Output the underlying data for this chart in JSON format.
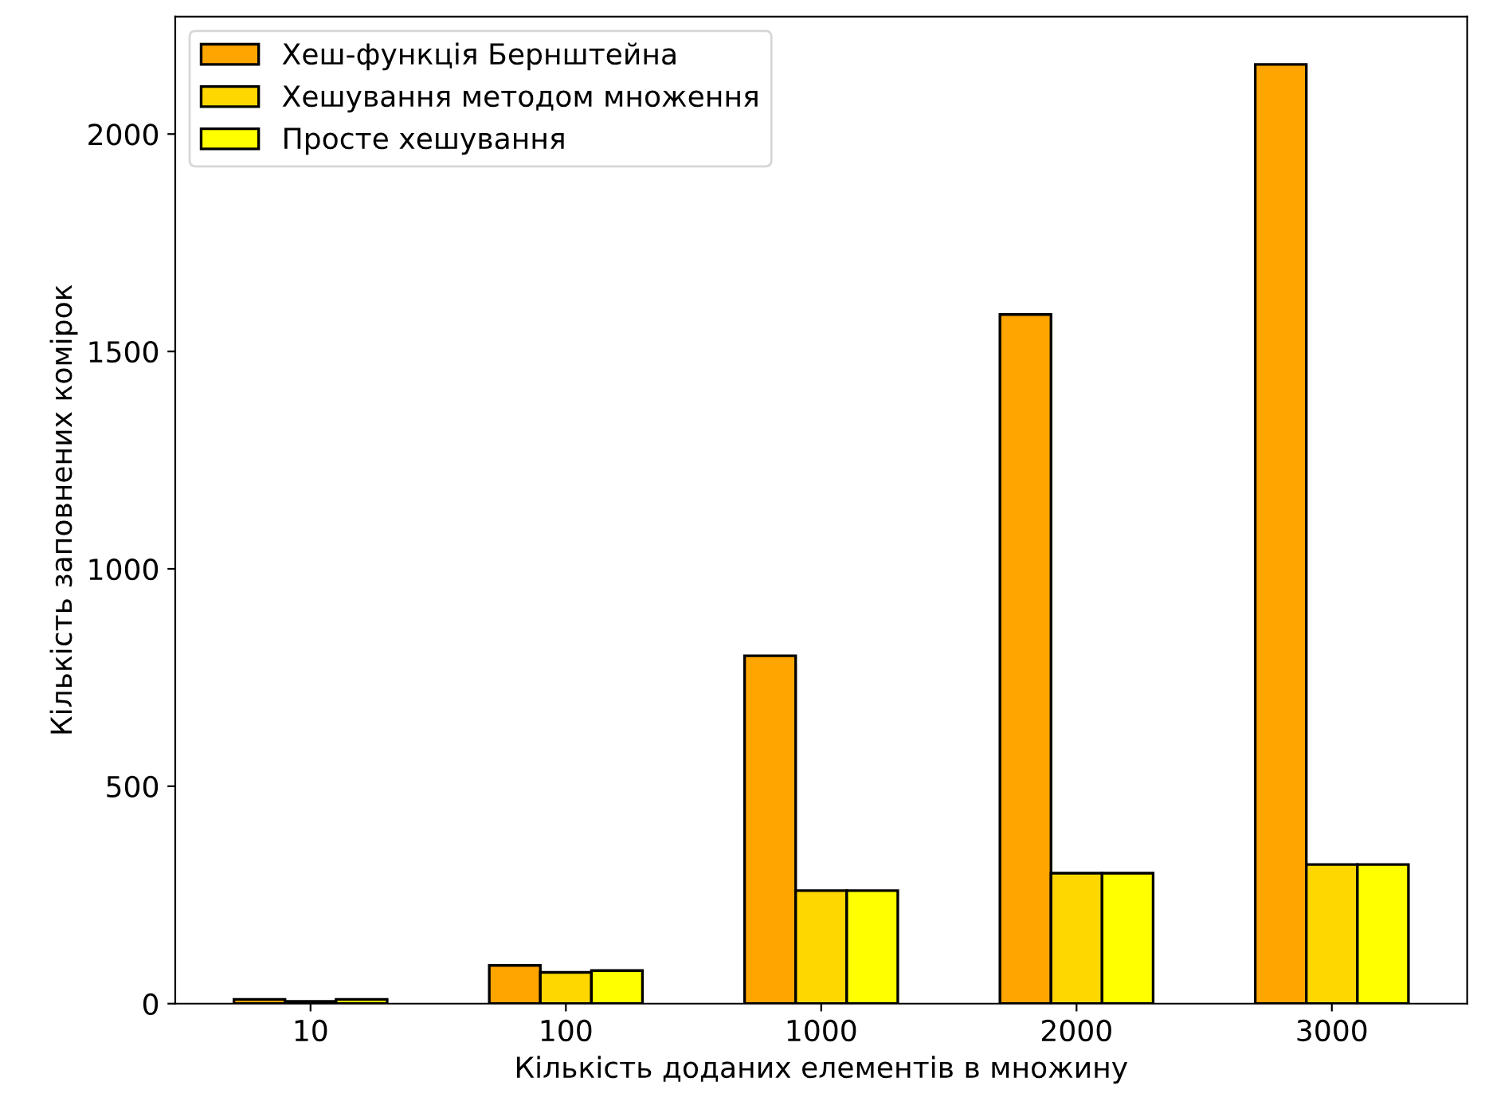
{
  "chart_data": {
    "type": "bar",
    "xlabel": "Кількість доданих елементів в множину",
    "ylabel": "Кількість заповнених комірок",
    "categories": [
      "10",
      "100",
      "1000",
      "2000",
      "3000"
    ],
    "series": [
      {
        "name": "Хеш-функція Бернштейна",
        "color": "#ffa500",
        "values": [
          10,
          88,
          800,
          1585,
          2160
        ]
      },
      {
        "name": "Хешування методом множення",
        "color": "#ffd700",
        "values": [
          5,
          72,
          260,
          300,
          320
        ]
      },
      {
        "name": "Просте хешування",
        "color": "#ffff00",
        "values": [
          10,
          76,
          260,
          300,
          320
        ]
      }
    ],
    "ylim": [
      0,
      2270
    ],
    "yticks": [
      0,
      500,
      1000,
      1500,
      2000
    ],
    "grid": false,
    "legend": "top left"
  }
}
